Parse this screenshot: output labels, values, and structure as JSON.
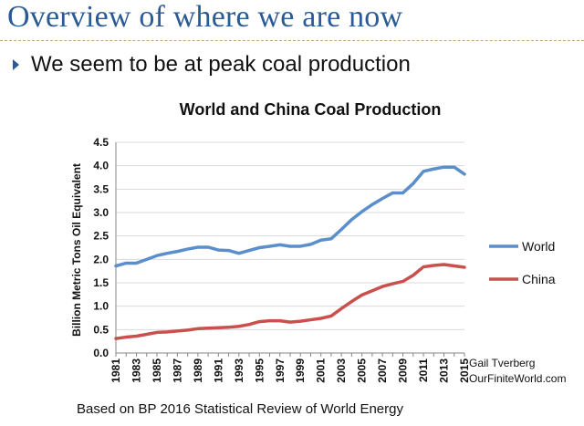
{
  "slide": {
    "title": "Overview of where we are now",
    "bullet": "We seem to be at peak coal production",
    "footer": "Based on BP 2016 Statistical Review of World Energy"
  },
  "colors": {
    "title": "#2b5b95",
    "world": "#5b8fcb",
    "china": "#c9504d",
    "axis": "#878787",
    "grid": "#d9d9d9"
  },
  "chart_data": {
    "type": "line",
    "title": "World and China Coal Production",
    "ylabel": "Billion Metric Tons Oil Equivalent",
    "xlabel": "",
    "ylim": [
      0,
      4.5
    ],
    "yticks": [
      "0.0",
      "0.5",
      "1.0",
      "1.5",
      "2.0",
      "2.5",
      "3.0",
      "3.5",
      "4.0",
      "4.5"
    ],
    "xticks": [
      "1981",
      "1983",
      "1985",
      "1987",
      "1989",
      "1991",
      "1993",
      "1995",
      "1997",
      "1999",
      "2001",
      "2003",
      "2005",
      "2007",
      "2009",
      "2011",
      "2013",
      "2015"
    ],
    "grid": true,
    "legend_position": "right",
    "x": [
      1981,
      1982,
      1983,
      1984,
      1985,
      1986,
      1987,
      1988,
      1989,
      1990,
      1991,
      1992,
      1993,
      1994,
      1995,
      1996,
      1997,
      1998,
      1999,
      2000,
      2001,
      2002,
      2003,
      2004,
      2005,
      2006,
      2007,
      2008,
      2009,
      2010,
      2011,
      2012,
      2013,
      2014,
      2015
    ],
    "series": [
      {
        "name": "World",
        "color": "#5b8fcb",
        "values": [
          1.86,
          1.92,
          1.92,
          2.0,
          2.08,
          2.13,
          2.17,
          2.22,
          2.26,
          2.26,
          2.2,
          2.19,
          2.13,
          2.19,
          2.25,
          2.28,
          2.31,
          2.28,
          2.28,
          2.32,
          2.41,
          2.44,
          2.64,
          2.85,
          3.02,
          3.17,
          3.3,
          3.42,
          3.42,
          3.62,
          3.88,
          3.93,
          3.97,
          3.97,
          3.82
        ]
      },
      {
        "name": "China",
        "color": "#c9504d",
        "values": [
          0.31,
          0.34,
          0.36,
          0.4,
          0.44,
          0.45,
          0.47,
          0.49,
          0.52,
          0.53,
          0.54,
          0.55,
          0.57,
          0.61,
          0.67,
          0.69,
          0.69,
          0.66,
          0.68,
          0.71,
          0.74,
          0.79,
          0.95,
          1.1,
          1.24,
          1.33,
          1.42,
          1.48,
          1.53,
          1.66,
          1.84,
          1.87,
          1.89,
          1.86,
          1.83
        ]
      }
    ],
    "annotation": [
      "Gail Tverberg",
      "OurFiniteWorld.com"
    ]
  }
}
